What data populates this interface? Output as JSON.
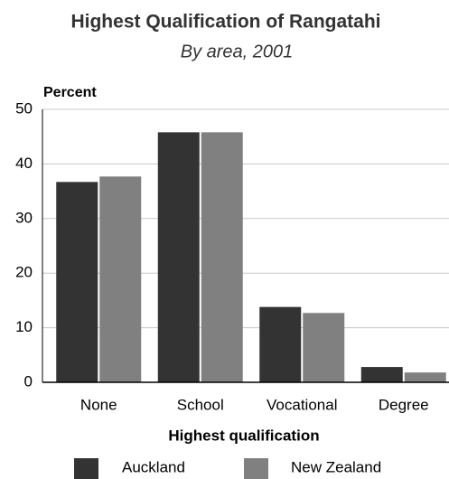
{
  "chart_data": {
    "type": "bar",
    "title": "Highest Qualification of Rangatahi",
    "subtitle": "By area, 2001",
    "y_label": "Percent",
    "x_label": "Highest qualification",
    "categories": [
      "None",
      "School",
      "Vocational",
      "Degree"
    ],
    "series": [
      {
        "name": "Auckland",
        "color": "#333333",
        "values": [
          36.7,
          45.8,
          13.8,
          2.8
        ]
      },
      {
        "name": "New Zealand",
        "color": "#808080",
        "values": [
          37.7,
          45.8,
          12.7,
          1.8
        ]
      }
    ],
    "ylim": [
      0,
      50
    ],
    "yticks": [
      0,
      10,
      20,
      30,
      40,
      50
    ],
    "grid": true
  }
}
